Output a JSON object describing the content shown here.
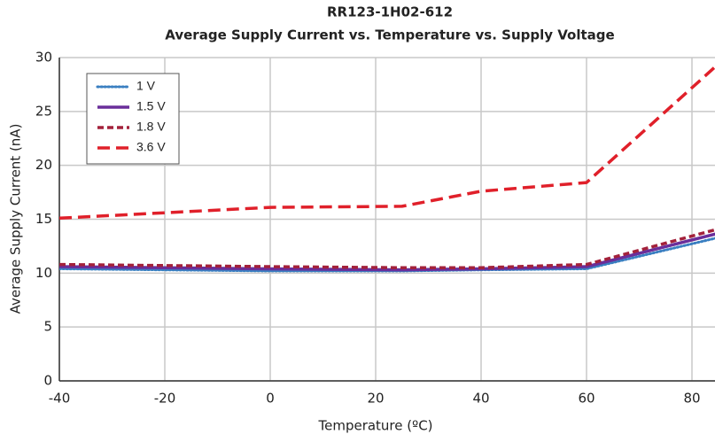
{
  "chart_data": {
    "type": "line",
    "title": "RR123-1H02-612",
    "subtitle": "Average Supply Current vs. Temperature vs. Supply Voltage",
    "x_label": "Temperature (ºC)",
    "y_label": "Average Supply Current (nA)",
    "x": [
      -40,
      -20,
      0,
      25,
      40,
      60,
      85
    ],
    "series": [
      {
        "name": "1 V",
        "color": "#3a7fc1",
        "dash": "dotted",
        "values": [
          10.4,
          10.3,
          10.2,
          10.2,
          10.3,
          10.4,
          13.3
        ]
      },
      {
        "name": "1.5 V",
        "color": "#6a2e9a",
        "dash": "solid",
        "values": [
          10.6,
          10.5,
          10.4,
          10.3,
          10.4,
          10.6,
          13.7
        ]
      },
      {
        "name": "1.8 V",
        "color": "#a3213b",
        "dash": "dashed",
        "values": [
          10.8,
          10.7,
          10.6,
          10.5,
          10.5,
          10.8,
          14.1
        ]
      },
      {
        "name": "3.6 V",
        "color": "#e0202a",
        "dash": "longdash",
        "values": [
          15.1,
          15.6,
          16.1,
          16.2,
          17.6,
          18.4,
          29.4
        ]
      }
    ],
    "xlim": [
      -40,
      85
    ],
    "xticks": [
      -40,
      -20,
      0,
      20,
      40,
      60,
      80
    ],
    "ylim": [
      0,
      30
    ],
    "yticks": [
      0,
      5,
      10,
      15,
      20,
      25,
      30
    ],
    "grid": true,
    "legend": "upper left"
  }
}
